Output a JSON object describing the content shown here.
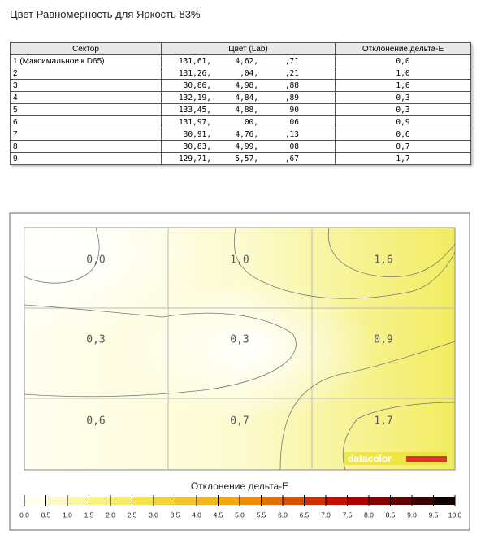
{
  "title": "Цвет Равномерность для Яркость 83%",
  "table": {
    "header": [
      "Сектор",
      "Цвет (Lab)",
      "Отклонение дельта-E"
    ],
    "rows": [
      {
        "sector": "1 (Максимальное к D65)",
        "lab": [
          "131,61,",
          "4,62,",
          ",71"
        ],
        "delta_e": "0,0"
      },
      {
        "sector": "2",
        "lab": [
          "131,26,",
          ",04,",
          ",21"
        ],
        "delta_e": "1,0"
      },
      {
        "sector": "3",
        "lab": [
          "30,86,",
          "4,98,",
          ",88"
        ],
        "delta_e": "1,6"
      },
      {
        "sector": "4",
        "lab": [
          "132,19,",
          "4,84,",
          ",89"
        ],
        "delta_e": "0,3"
      },
      {
        "sector": "5",
        "lab": [
          "133,45,",
          "4,88,",
          "90"
        ],
        "delta_e": "0,3"
      },
      {
        "sector": "6",
        "lab": [
          "131,97,",
          "00,",
          "06"
        ],
        "delta_e": "0,9"
      },
      {
        "sector": "7",
        "lab": [
          "30,91,",
          "4,76,",
          ",13"
        ],
        "delta_e": "0,6"
      },
      {
        "sector": "8",
        "lab": [
          "30,83,",
          "4,99,",
          "08"
        ],
        "delta_e": "0,7"
      },
      {
        "sector": "9",
        "lab": [
          "129,71,",
          "5,57,",
          ",67"
        ],
        "delta_e": "1,7"
      }
    ]
  },
  "map": {
    "cells": [
      [
        "0,0",
        "1,0",
        "1,6"
      ],
      [
        "0,3",
        "0,3",
        "0,9"
      ],
      [
        "0,6",
        "0,7",
        "1,7"
      ]
    ],
    "brand": "datacolor",
    "legend_title": "Отклонение дельта-E",
    "legend_ticks": [
      "0.0",
      "0.5",
      "1.0",
      "1.5",
      "2.0",
      "2.5",
      "3.0",
      "3.5",
      "4.0",
      "4.5",
      "5.0",
      "5.5",
      "6.0",
      "6.5",
      "7.0",
      "7.5",
      "8.0",
      "8.5",
      "9.0",
      "9.5",
      "10.0"
    ]
  }
}
